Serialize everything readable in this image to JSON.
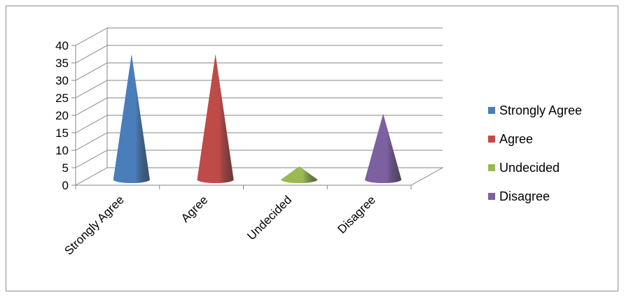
{
  "chart_data": {
    "type": "bar",
    "style": "3d-cone",
    "categories": [
      "Strongly Agree",
      "Agree",
      "Undecided",
      "Disagree"
    ],
    "values": [
      38,
      38,
      6,
      21
    ],
    "colors": [
      "#4a7ebb",
      "#be4b48",
      "#98b954",
      "#7d60a0"
    ],
    "ylim": [
      0,
      40
    ],
    "yticks": [
      "0",
      "5",
      "10",
      "15",
      "20",
      "25",
      "30",
      "35",
      "40"
    ],
    "grid": true,
    "legend": {
      "position": "right",
      "entries": [
        "Strongly Agree",
        "Agree",
        "Undecided",
        "Disagree"
      ]
    }
  }
}
